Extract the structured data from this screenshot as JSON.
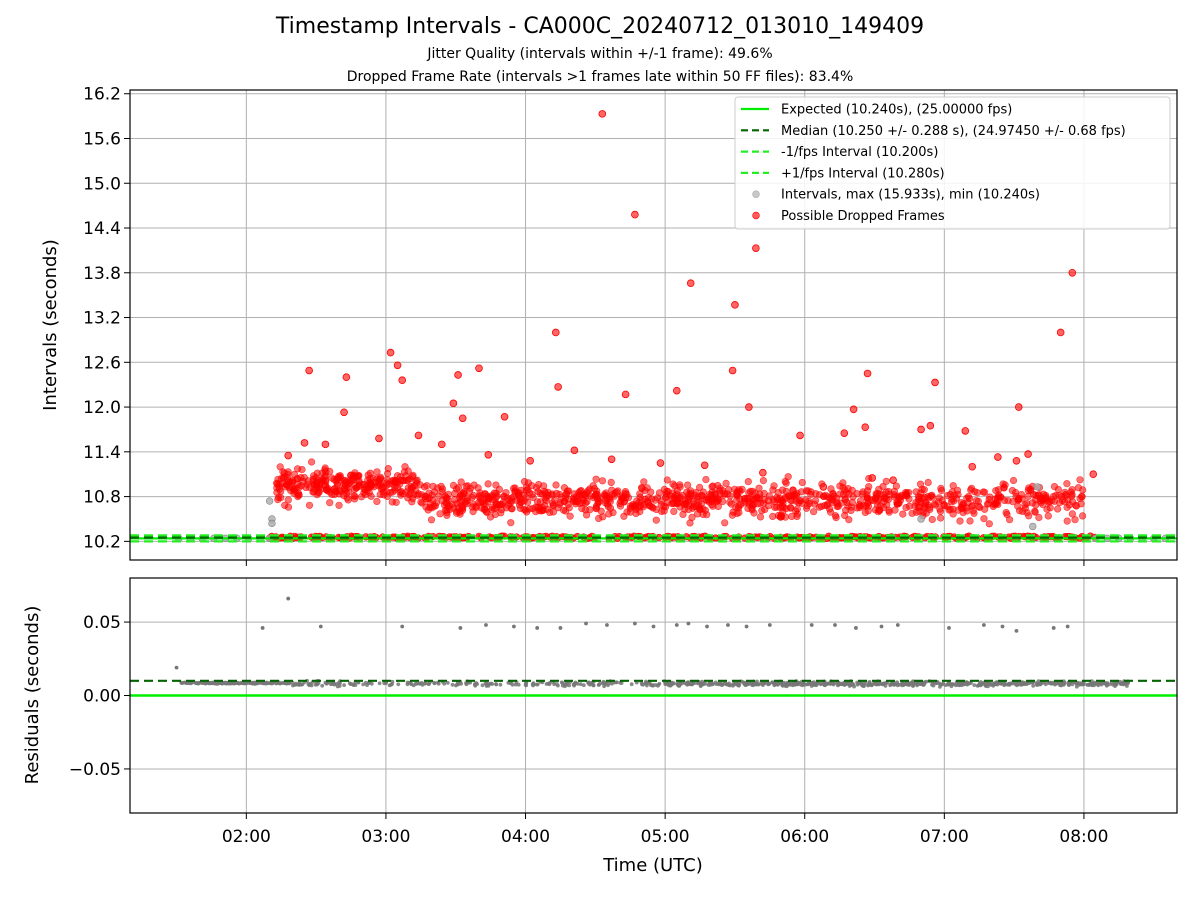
{
  "title": "Timestamp Intervals - CA000C_20240712_013010_149409",
  "subtitle1": "Jitter Quality (intervals within +/-1 frame): 49.6%",
  "subtitle2": "Dropped Frame Rate (intervals >1 frames late within 50 FF files): 83.4%",
  "colors": {
    "expected": "#00ee00",
    "median": "#006400",
    "fps_interval": "#22ee22",
    "intervals": "#aaaaaa",
    "dropped": "#ff0000",
    "residuals": "#777777",
    "grid": "#b0b0b0"
  },
  "chart_data": [
    {
      "type": "scatter",
      "ylabel": "Intervals (seconds)",
      "xlabel": "",
      "xlim": [
        "01:10",
        "08:40"
      ],
      "ylim": [
        9.95,
        16.25
      ],
      "yticks": [
        "10.2",
        "10.8",
        "11.4",
        "12.0",
        "12.6",
        "13.2",
        "13.8",
        "14.4",
        "15.0",
        "15.6",
        "16.2"
      ],
      "xticks": [
        "02:00",
        "03:00",
        "04:00",
        "05:00",
        "06:00",
        "07:00",
        "08:00"
      ],
      "grid": true,
      "legend_position": "top-right",
      "reference_lines": [
        {
          "name": "Expected (10.240s), (25.00000 fps)",
          "y": 10.24,
          "style": "solid"
        },
        {
          "name": "Median (10.250 +/- 0.288 s), (24.97450 +/- 0.68 fps)",
          "y": 10.25,
          "style": "dashed"
        },
        {
          "name": "-1/fps Interval (10.200s)",
          "y": 10.2,
          "style": "dashed"
        },
        {
          "name": "+1/fps Interval (10.280s)",
          "y": 10.28,
          "style": "dashed"
        }
      ],
      "series": [
        {
          "name": "Intervals, max (15.933s), min (10.240s)",
          "points": [
            [
              "01:31",
              10.24
            ],
            [
              "01:36",
              10.24
            ],
            [
              "01:41",
              10.24
            ],
            [
              "01:46",
              10.24
            ],
            [
              "01:51",
              10.24
            ],
            [
              "01:56",
              10.24
            ],
            [
              "02:01",
              10.24
            ],
            [
              "02:06",
              10.24
            ],
            [
              "02:10",
              10.24
            ],
            [
              "02:10",
              10.74
            ],
            [
              "02:11",
              10.5
            ],
            [
              "02:11",
              10.44
            ],
            [
              "06:50",
              10.5
            ],
            [
              "07:38",
              10.4
            ],
            [
              "07:40",
              10.93
            ],
            [
              "08:05",
              10.24
            ],
            [
              "08:10",
              10.24
            ],
            [
              "08:15",
              10.24
            ],
            [
              "08:20",
              10.24
            ],
            [
              "08:25",
              10.24
            ],
            [
              "08:30",
              10.24
            ],
            [
              "08:35",
              10.24
            ]
          ]
        },
        {
          "name": "Possible Dropped Frames",
          "points": [
            [
              "04:33",
              15.93
            ],
            [
              "04:47",
              14.58
            ],
            [
              "05:39",
              14.13
            ],
            [
              "07:55",
              13.8
            ],
            [
              "05:11",
              13.66
            ],
            [
              "05:30",
              13.37
            ],
            [
              "07:50",
              13.0
            ],
            [
              "04:13",
              13.0
            ],
            [
              "03:02",
              12.73
            ],
            [
              "03:05",
              12.56
            ],
            [
              "02:43",
              12.4
            ],
            [
              "03:40",
              12.52
            ],
            [
              "02:27",
              12.49
            ],
            [
              "03:31",
              12.43
            ],
            [
              "05:29",
              12.49
            ],
            [
              "06:27",
              12.45
            ],
            [
              "06:56",
              12.33
            ],
            [
              "04:14",
              12.27
            ],
            [
              "05:05",
              12.22
            ],
            [
              "04:43",
              12.17
            ],
            [
              "03:07",
              12.36
            ],
            [
              "03:51",
              11.87
            ],
            [
              "02:42",
              11.93
            ],
            [
              "05:36",
              12.0
            ],
            [
              "06:21",
              11.97
            ],
            [
              "03:29",
              12.05
            ],
            [
              "03:33",
              11.85
            ],
            [
              "06:26",
              11.73
            ],
            [
              "07:32",
              12.0
            ],
            [
              "07:36",
              11.37
            ],
            [
              "05:58",
              11.62
            ],
            [
              "06:17",
              11.65
            ],
            [
              "06:50",
              11.7
            ],
            [
              "06:54",
              11.75
            ],
            [
              "07:09",
              11.68
            ],
            [
              "07:23",
              11.33
            ],
            [
              "07:31",
              11.28
            ],
            [
              "08:04",
              11.1
            ],
            [
              "07:12",
              11.2
            ],
            [
              "06:38",
              11.02
            ],
            [
              "06:29",
              11.05
            ],
            [
              "06:08",
              10.93
            ],
            [
              "05:42",
              11.12
            ],
            [
              "05:17",
              11.22
            ],
            [
              "04:58",
              11.25
            ],
            [
              "04:37",
              11.3
            ],
            [
              "04:21",
              11.42
            ],
            [
              "04:02",
              11.28
            ],
            [
              "03:44",
              11.36
            ],
            [
              "03:24",
              11.5
            ],
            [
              "03:14",
              11.62
            ],
            [
              "02:57",
              11.58
            ],
            [
              "02:34",
              11.5
            ],
            [
              "02:25",
              11.52
            ],
            [
              "02:18",
              11.35
            ]
          ],
          "dense_clusters": [
            {
              "from": "02:13",
              "to": "08:00",
              "interval_range": [
                10.35,
                11.35
              ],
              "note": "many overlapping points"
            },
            {
              "from": "02:10",
              "to": "08:05",
              "interval_range": [
                10.24,
                10.26
              ],
              "note": "continuous band at expected interval"
            }
          ]
        }
      ]
    },
    {
      "type": "scatter",
      "ylabel": "Residuals (seconds)",
      "xlabel": "Time (UTC)",
      "ylim": [
        -0.08,
        0.08
      ],
      "yticks": [
        "−0.05",
        "0.00",
        "0.05"
      ],
      "xticks": [
        "02:00",
        "03:00",
        "04:00",
        "05:00",
        "06:00",
        "07:00",
        "08:00"
      ],
      "grid": true,
      "reference_lines": [
        {
          "y": 0.0,
          "style": "solid",
          "color_ref": "expected"
        },
        {
          "y": 0.01,
          "style": "dashed",
          "color_ref": "median"
        }
      ],
      "series": [
        {
          "name": "",
          "points": [
            [
              "01:30",
              0.019
            ],
            [
              "02:18",
              0.066
            ],
            [
              "02:07",
              0.046
            ],
            [
              "02:32",
              0.047
            ],
            [
              "03:07",
              0.047
            ],
            [
              "03:32",
              0.046
            ],
            [
              "03:43",
              0.048
            ],
            [
              "03:55",
              0.047
            ],
            [
              "04:05",
              0.046
            ],
            [
              "04:15",
              0.046
            ],
            [
              "04:26",
              0.049
            ],
            [
              "04:35",
              0.048
            ],
            [
              "04:47",
              0.049
            ],
            [
              "04:55",
              0.047
            ],
            [
              "05:05",
              0.048
            ],
            [
              "05:10",
              0.049
            ],
            [
              "05:18",
              0.047
            ],
            [
              "05:27",
              0.048
            ],
            [
              "05:35",
              0.047
            ],
            [
              "05:45",
              0.048
            ],
            [
              "06:03",
              0.048
            ],
            [
              "06:13",
              0.048
            ],
            [
              "06:22",
              0.046
            ],
            [
              "06:33",
              0.047
            ],
            [
              "06:40",
              0.048
            ],
            [
              "07:02",
              0.046
            ],
            [
              "07:17",
              0.048
            ],
            [
              "07:25",
              0.047
            ],
            [
              "07:31",
              0.044
            ],
            [
              "07:47",
              0.046
            ],
            [
              "07:53",
              0.047
            ]
          ],
          "dense_clusters": [
            {
              "from": "01:32",
              "to": "08:20",
              "residual_range": [
                0.005,
                0.013
              ],
              "note": "dense band near median"
            }
          ]
        }
      ]
    }
  ],
  "legend": [
    {
      "label": "Expected (10.240s), (25.00000 fps)",
      "kind": "line-solid",
      "color_ref": "expected"
    },
    {
      "label": "Median (10.250 +/- 0.288 s), (24.97450 +/- 0.68 fps)",
      "kind": "line-dashed",
      "color_ref": "median"
    },
    {
      "label": "-1/fps Interval (10.200s)",
      "kind": "line-dashed",
      "color_ref": "fps_interval"
    },
    {
      "label": "+1/fps Interval (10.280s)",
      "kind": "line-dashed",
      "color_ref": "fps_interval"
    },
    {
      "label": "Intervals, max (15.933s), min (10.240s)",
      "kind": "dot",
      "color_ref": "intervals"
    },
    {
      "label": "Possible Dropped Frames",
      "kind": "dot",
      "color_ref": "dropped"
    }
  ]
}
